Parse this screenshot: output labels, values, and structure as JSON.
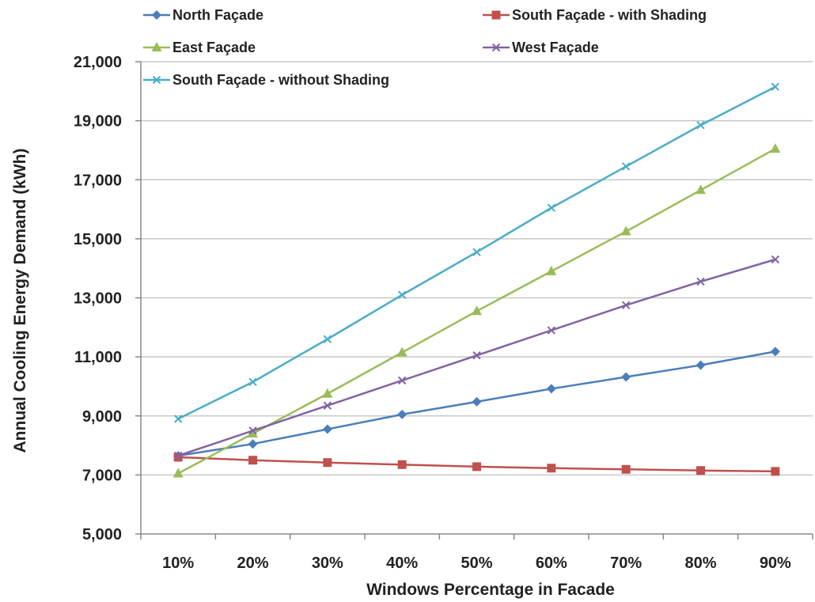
{
  "chart_data": {
    "type": "line",
    "title": "",
    "xlabel": "Windows Percentage in Facade",
    "ylabel": "Annual Cooling Energy Demand (kWh)",
    "categories": [
      "10%",
      "20%",
      "30%",
      "40%",
      "50%",
      "60%",
      "70%",
      "80%",
      "90%"
    ],
    "ylim": [
      5000,
      21000
    ],
    "yticks": [
      5000,
      7000,
      9000,
      11000,
      13000,
      15000,
      17000,
      19000,
      21000
    ],
    "ytick_labels": [
      "5,000",
      "7,000",
      "9,000",
      "11,000",
      "13,000",
      "15,000",
      "17,000",
      "19,000",
      "21,000"
    ],
    "grid": "horizontal",
    "legend_position": "top",
    "series": [
      {
        "name": "North Façade",
        "color": "#4a7ebb",
        "marker": "diamond",
        "values": [
          7650,
          8050,
          8550,
          9050,
          9480,
          9920,
          10320,
          10720,
          11180
        ]
      },
      {
        "name": "South Façade - with Shading",
        "color": "#c0504d",
        "marker": "square",
        "values": [
          7600,
          7500,
          7420,
          7350,
          7280,
          7230,
          7190,
          7150,
          7120
        ]
      },
      {
        "name": "East Façade",
        "color": "#9bbb59",
        "marker": "triangle",
        "values": [
          7050,
          8400,
          9750,
          11150,
          12550,
          13900,
          15250,
          16650,
          18050
        ]
      },
      {
        "name": "West Façade",
        "color": "#8064a2",
        "marker": "x",
        "values": [
          7650,
          8500,
          9350,
          10200,
          11050,
          11900,
          12750,
          13550,
          14300
        ]
      },
      {
        "name": "South Façade - without Shading",
        "color": "#4bacc6",
        "marker": "x",
        "values": [
          8900,
          10150,
          11600,
          13100,
          14550,
          16050,
          17450,
          18850,
          20150
        ]
      }
    ]
  }
}
